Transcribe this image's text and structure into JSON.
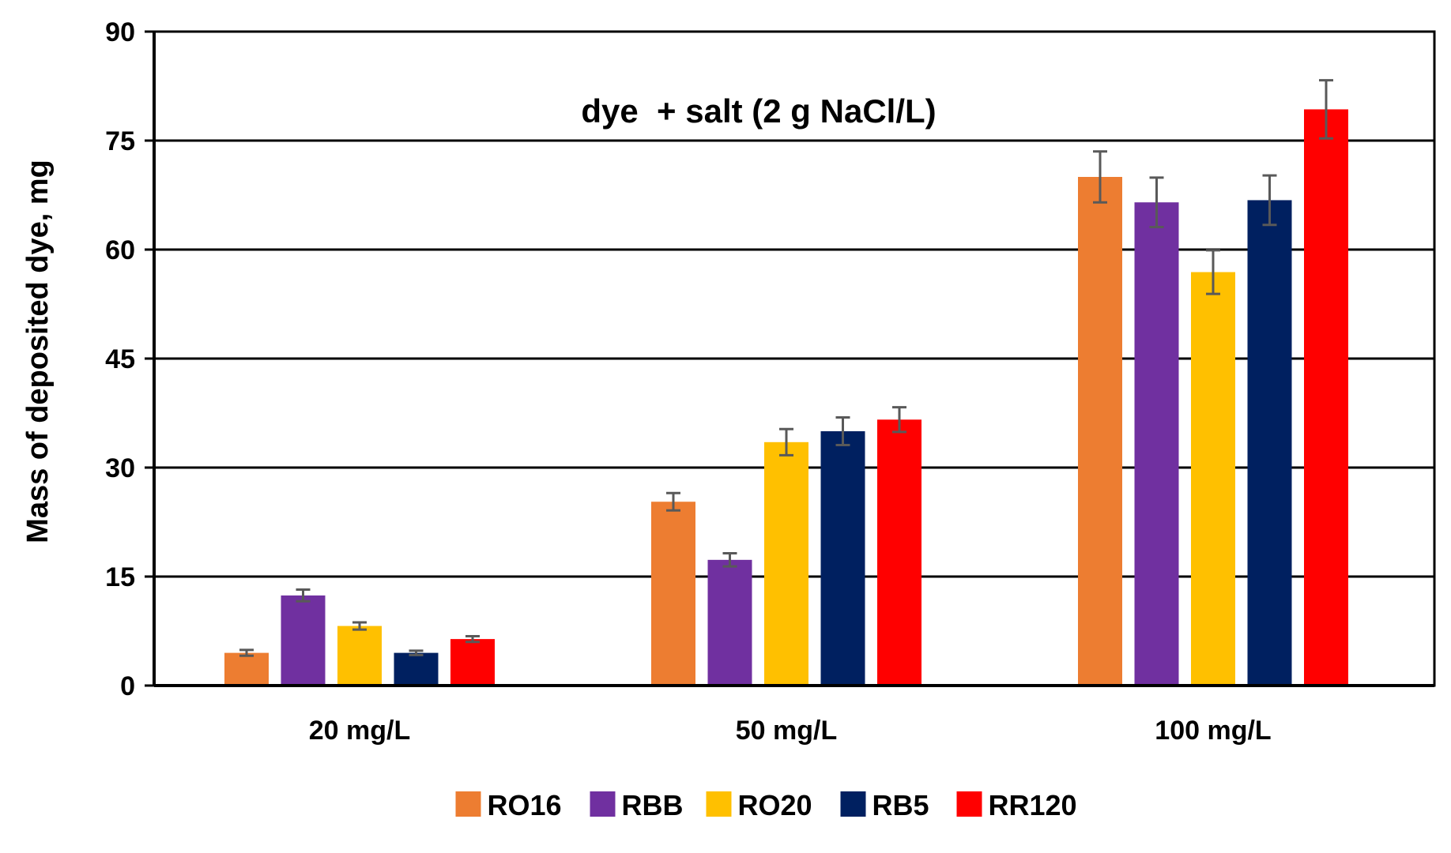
{
  "chart_data": {
    "type": "bar",
    "title": "",
    "annotation": "dye  + salt (2 g NaCl/L)",
    "xlabel": "",
    "ylabel": "Mass of deposited dye, mg",
    "ylim": [
      0,
      90
    ],
    "yticks": [
      0,
      15,
      30,
      45,
      60,
      75,
      90
    ],
    "grid": true,
    "legend_position": "bottom",
    "categories": [
      "20 mg/L",
      "50 mg/L",
      "100 mg/L"
    ],
    "series": [
      {
        "name": "RO16",
        "color": "#ED7D31",
        "values": [
          4.5,
          25.3,
          70.0
        ],
        "errors": [
          0.4,
          1.2,
          3.5
        ]
      },
      {
        "name": "RBB",
        "color": "#7030A0",
        "values": [
          12.4,
          17.3,
          66.5
        ],
        "errors": [
          0.8,
          0.9,
          3.4
        ]
      },
      {
        "name": "RO20",
        "color": "#FFC000",
        "values": [
          8.2,
          33.5,
          56.9
        ],
        "errors": [
          0.5,
          1.8,
          3.0
        ]
      },
      {
        "name": "RB5",
        "color": "#002060",
        "values": [
          4.5,
          35.0,
          66.8
        ],
        "errors": [
          0.3,
          1.9,
          3.4
        ]
      },
      {
        "name": "RR120",
        "color": "#FF0000",
        "values": [
          6.4,
          36.6,
          79.3
        ],
        "errors": [
          0.4,
          1.7,
          4.0
        ]
      }
    ]
  }
}
